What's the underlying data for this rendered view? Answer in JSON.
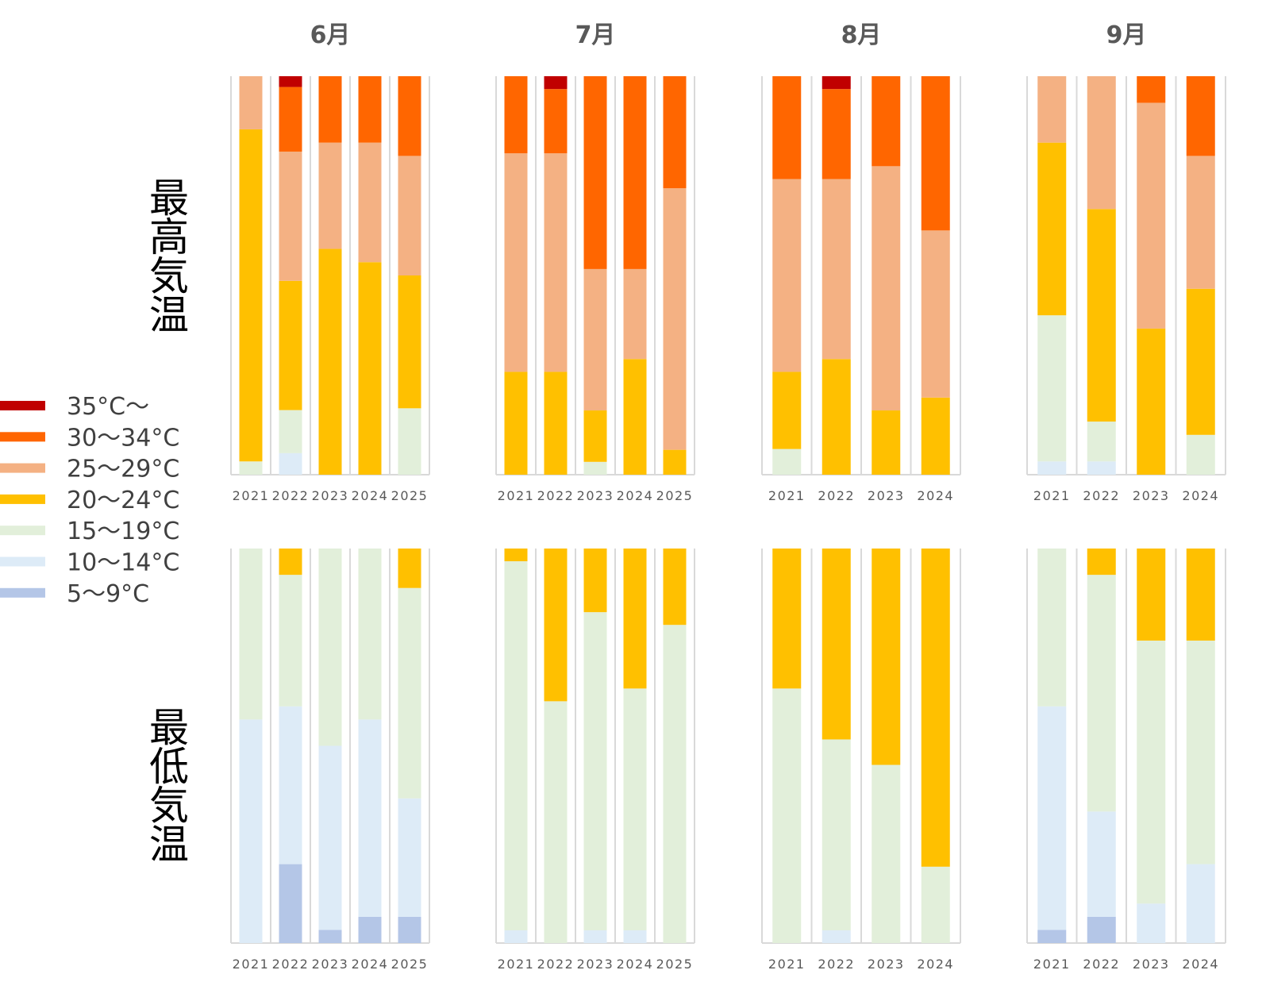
{
  "chart_data": {
    "type": "bar",
    "stacked": true,
    "stack_order": "bottom-to-top",
    "legend_order": "top-to-bottom",
    "row_labels": [
      "最高気温",
      "最低気温"
    ],
    "legend": [
      {
        "label": "35°C〜",
        "color": "#C00000"
      },
      {
        "label": "30〜34°C",
        "color": "#FF6600"
      },
      {
        "label": "25〜29°C",
        "color": "#F4B183"
      },
      {
        "label": "20〜24°C",
        "color": "#FFC000"
      },
      {
        "label": "15〜19°C",
        "color": "#E2EFDA"
      },
      {
        "label": "10〜14°C",
        "color": "#DDEBF7"
      },
      {
        "label": "5〜9°C",
        "color": "#B4C6E7"
      }
    ],
    "panels": [
      {
        "month": "6月",
        "row": "最高気温",
        "categories": [
          "2021",
          "2022",
          "2023",
          "2024",
          "2025"
        ],
        "values_days": [
          [
            0,
            0,
            1,
            25,
            4,
            0,
            0
          ],
          [
            0,
            2,
            4,
            12,
            12,
            6,
            1
          ],
          [
            0,
            0,
            0,
            17,
            8,
            5,
            0
          ],
          [
            0,
            0,
            0,
            16,
            9,
            5,
            0
          ],
          [
            0,
            0,
            5,
            10,
            9,
            6,
            0
          ]
        ]
      },
      {
        "month": "7月",
        "row": "最高気温",
        "categories": [
          "2021",
          "2022",
          "2023",
          "2024",
          "2025"
        ],
        "values_days": [
          [
            0,
            0,
            0,
            8,
            17,
            6,
            0
          ],
          [
            0,
            0,
            0,
            8,
            17,
            5,
            1
          ],
          [
            0,
            0,
            1,
            4,
            11,
            15,
            0
          ],
          [
            0,
            0,
            0,
            9,
            7,
            15,
            0
          ],
          [
            0,
            0,
            0,
            2,
            21,
            9,
            0
          ]
        ]
      },
      {
        "month": "8月",
        "row": "最高気温",
        "categories": [
          "2021",
          "2022",
          "2023",
          "2024"
        ],
        "values_days": [
          [
            0,
            0,
            2,
            6,
            15,
            8,
            0
          ],
          [
            0,
            0,
            0,
            9,
            14,
            7,
            1
          ],
          [
            0,
            0,
            0,
            5,
            19,
            7,
            0
          ],
          [
            0,
            0,
            0,
            6,
            13,
            12,
            0
          ]
        ]
      },
      {
        "month": "9月",
        "row": "最高気温",
        "categories": [
          "2021",
          "2022",
          "2023",
          "2024"
        ],
        "values_days": [
          [
            0,
            1,
            11,
            13,
            5,
            0,
            0
          ],
          [
            0,
            1,
            3,
            16,
            10,
            0,
            0
          ],
          [
            0,
            0,
            0,
            11,
            17,
            2,
            0
          ],
          [
            0,
            0,
            3,
            11,
            10,
            6,
            0
          ]
        ]
      },
      {
        "month": "6月",
        "row": "最低気温",
        "categories": [
          "2021",
          "2022",
          "2023",
          "2024",
          "2025"
        ],
        "values_days": [
          [
            0,
            17,
            13,
            0,
            0,
            0,
            0
          ],
          [
            6,
            12,
            10,
            2,
            0,
            0,
            0
          ],
          [
            1,
            14,
            15,
            0,
            0,
            0,
            0
          ],
          [
            2,
            15,
            13,
            0,
            0,
            0,
            0
          ],
          [
            2,
            9,
            16,
            3,
            0,
            0,
            0
          ]
        ]
      },
      {
        "month": "7月",
        "row": "最低気温",
        "categories": [
          "2021",
          "2022",
          "2023",
          "2024",
          "2025"
        ],
        "values_days": [
          [
            0,
            1,
            29,
            1,
            0,
            0,
            0
          ],
          [
            0,
            0,
            19,
            12,
            0,
            0,
            0
          ],
          [
            0,
            1,
            25,
            5,
            0,
            0,
            0
          ],
          [
            0,
            1,
            19,
            11,
            0,
            0,
            0
          ],
          [
            0,
            0,
            25,
            6,
            0,
            0,
            0
          ]
        ]
      },
      {
        "month": "8月",
        "row": "最低気温",
        "categories": [
          "2021",
          "2022",
          "2023",
          "2024"
        ],
        "values_days": [
          [
            0,
            0,
            20,
            11,
            0,
            0,
            0
          ],
          [
            0,
            1,
            15,
            15,
            0,
            0,
            0
          ],
          [
            0,
            0,
            14,
            17,
            0,
            0,
            0
          ],
          [
            0,
            0,
            6,
            25,
            0,
            0,
            0
          ]
        ]
      },
      {
        "month": "9月",
        "row": "最低気温",
        "categories": [
          "2021",
          "2022",
          "2023",
          "2024"
        ],
        "values_days": [
          [
            1,
            17,
            12,
            0,
            0,
            0,
            0
          ],
          [
            2,
            8,
            18,
            2,
            0,
            0,
            0
          ],
          [
            0,
            3,
            20,
            7,
            0,
            0,
            0
          ],
          [
            0,
            6,
            17,
            7,
            0,
            0,
            0
          ]
        ]
      }
    ]
  }
}
